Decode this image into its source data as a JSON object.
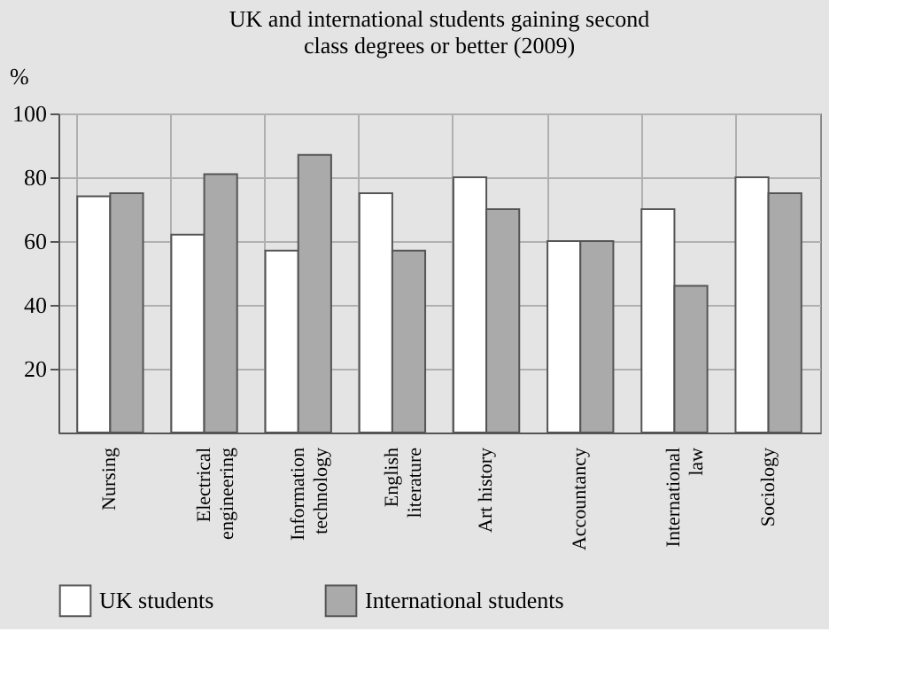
{
  "chart_data": {
    "type": "bar",
    "title": "UK and international students gaining second class degrees or better (2009)",
    "ylabel": "%",
    "categories": [
      "Nursing",
      "Electrical engineering",
      "Information technology",
      "English literature",
      "Art history",
      "Accountancy",
      "International law",
      "Sociology"
    ],
    "series": [
      {
        "name": "UK students",
        "color": "#ffffff",
        "values": [
          74,
          62,
          57,
          75,
          80,
          60,
          70,
          80
        ]
      },
      {
        "name": "International students",
        "color": "#aaaaaa",
        "values": [
          75,
          81,
          87,
          57,
          70,
          60,
          46,
          75
        ]
      }
    ],
    "ylim": [
      0,
      100
    ],
    "yticks": [
      20,
      40,
      60,
      80,
      100
    ],
    "grid": true,
    "legend": "bottom"
  }
}
